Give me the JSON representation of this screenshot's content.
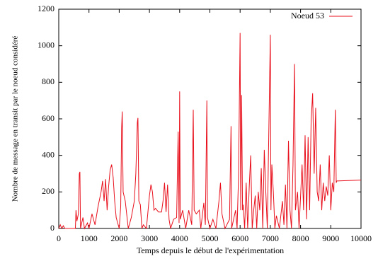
{
  "chart_data": {
    "type": "line",
    "xlabel": "Temps depuis le début de l'expérimentation",
    "ylabel": "Nombre de message en transit par le noeud considéré",
    "x": [
      0,
      50,
      100,
      150,
      200,
      550,
      570,
      600,
      650,
      680,
      700,
      720,
      800,
      850,
      950,
      1000,
      1100,
      1200,
      1300,
      1400,
      1450,
      1500,
      1550,
      1600,
      1650,
      1700,
      1750,
      1800,
      1850,
      1900,
      1950,
      2000,
      2050,
      2080,
      2100,
      2130,
      2200,
      2300,
      2400,
      2500,
      2550,
      2600,
      2620,
      2650,
      2700,
      2750,
      2800,
      2900,
      3000,
      3050,
      3100,
      3150,
      3200,
      3300,
      3400,
      3450,
      3500,
      3550,
      3600,
      3650,
      3700,
      3800,
      3900,
      3950,
      3980,
      4000,
      4020,
      4100,
      4200,
      4300,
      4400,
      4450,
      4480,
      4550,
      4650,
      4700,
      4800,
      4850,
      4900,
      4920,
      5000,
      5100,
      5200,
      5300,
      5350,
      5400,
      5500,
      5650,
      5700,
      5720,
      5850,
      5900,
      5950,
      6000,
      6020,
      6050,
      6080,
      6100,
      6150,
      6200,
      6250,
      6300,
      6350,
      6400,
      6450,
      6500,
      6550,
      6600,
      6650,
      6700,
      6750,
      6800,
      6850,
      6900,
      7000,
      7020,
      7050,
      7100,
      7150,
      7200,
      7300,
      7400,
      7450,
      7500,
      7550,
      7600,
      7650,
      7700,
      7750,
      7800,
      7830,
      7900,
      7950,
      8050,
      8100,
      8150,
      8200,
      8250,
      8300,
      8350,
      8400,
      8450,
      8500,
      8550,
      8600,
      8650,
      8700,
      8750,
      8800,
      8850,
      8900,
      8950,
      9000,
      9050,
      9100,
      9150,
      9180,
      9200,
      10000
    ],
    "series": [
      {
        "name": "Noeud 53",
        "color": "#e8101c",
        "values": [
          0,
          20,
          0,
          15,
          0,
          0,
          100,
          40,
          80,
          300,
          310,
          0,
          60,
          0,
          30,
          0,
          80,
          20,
          120,
          200,
          260,
          150,
          270,
          100,
          230,
          320,
          350,
          280,
          150,
          60,
          30,
          0,
          120,
          550,
          640,
          200,
          150,
          0,
          60,
          150,
          300,
          580,
          605,
          150,
          130,
          0,
          20,
          0,
          180,
          240,
          200,
          100,
          110,
          90,
          90,
          150,
          250,
          90,
          240,
          50,
          0,
          50,
          60,
          530,
          30,
          750,
          50,
          100,
          0,
          100,
          20,
          650,
          100,
          80,
          100,
          0,
          140,
          20,
          700,
          60,
          0,
          50,
          0,
          150,
          250,
          80,
          0,
          50,
          560,
          0,
          100,
          0,
          300,
          1070,
          100,
          730,
          100,
          130,
          0,
          250,
          0,
          220,
          400,
          0,
          100,
          180,
          0,
          200,
          100,
          330,
          0,
          430,
          200,
          0,
          1060,
          100,
          350,
          200,
          0,
          70,
          0,
          150,
          20,
          240,
          0,
          480,
          100,
          0,
          350,
          900,
          100,
          200,
          0,
          350,
          100,
          510,
          50,
          500,
          100,
          590,
          740,
          300,
          660,
          200,
          150,
          350,
          100,
          250,
          150,
          230,
          180,
          400,
          100,
          250,
          200,
          650,
          250,
          260,
          265
        ]
      }
    ],
    "xlim": [
      0,
      10000
    ],
    "ylim": [
      0,
      1200
    ],
    "xticks": [
      0,
      1000,
      2000,
      3000,
      4000,
      5000,
      6000,
      7000,
      8000,
      9000,
      10000
    ],
    "yticks": [
      0,
      200,
      400,
      600,
      800,
      1000,
      1200
    ],
    "legend": "top-right"
  }
}
